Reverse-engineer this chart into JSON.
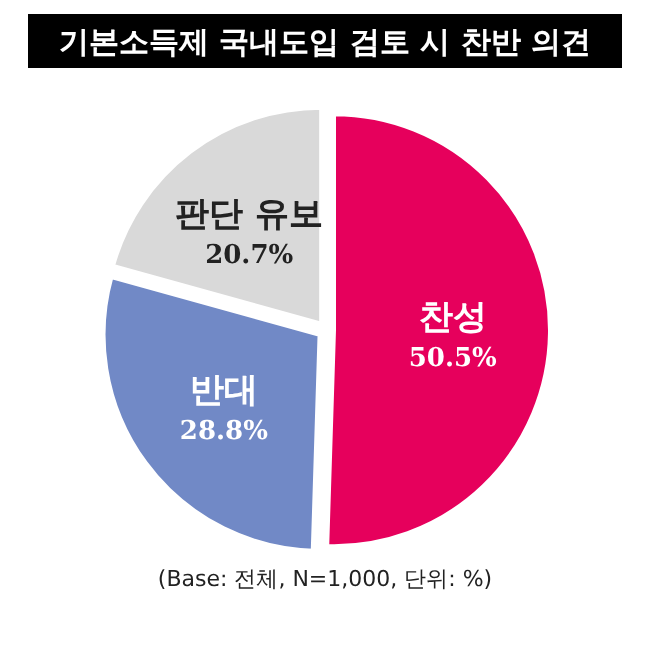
{
  "chart_data": {
    "type": "pie",
    "title": "기본소득제 국내도입 검토 시 찬반 의견",
    "categories": [
      "찬성",
      "반대",
      "판단 유보"
    ],
    "values": [
      50.5,
      28.8,
      20.7
    ],
    "colors": [
      "#e6005c",
      "#7189c6",
      "#d9d9d9"
    ],
    "value_labels": [
      "50.5%",
      "28.8%",
      "20.7%"
    ],
    "annotations": [
      "(Base: 전체, N=1,000, 단위: %)"
    ]
  }
}
